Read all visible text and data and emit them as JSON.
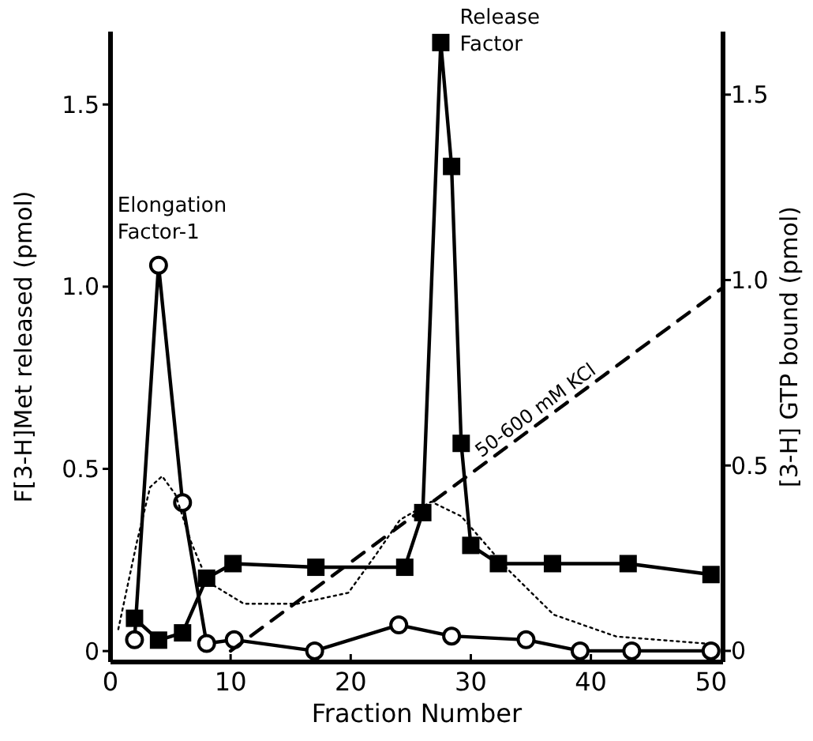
{
  "chart_data": {
    "type": "line",
    "xlabel": "Fraction Number",
    "ylabel": "F[3-H]Met released (pmol)",
    "y2label": "[3-H] GTP bound (pmol)",
    "xlim": [
      0,
      51
    ],
    "xticks": [
      0,
      10,
      20,
      30,
      40,
      50
    ],
    "ylim": [
      -0.03,
      1.7
    ],
    "yticks": [
      0,
      {
        "value": 0.5,
        "label": "0.5"
      },
      {
        "value": 1,
        "label": "1.0"
      },
      1.5
    ],
    "y2lim": [
      -0.03,
      1.67
    ],
    "y2ticks": [
      0,
      {
        "value": 0.5,
        "label": "0.5"
      },
      {
        "value": 1,
        "label": "1.0"
      },
      1.5
    ],
    "series": [
      {
        "color": "#000000",
        "marker": "square",
        "line_style": "solid",
        "x": [
          2,
          4,
          6,
          8,
          10.2,
          17.1,
          24.5,
          26,
          27.5,
          28.4,
          29.2,
          30,
          32.3,
          36.8,
          43.1,
          50
        ],
        "values": [
          0.09,
          0.03,
          0.05,
          0.2,
          0.24,
          0.23,
          0.23,
          0.38,
          1.67,
          1.33,
          0.57,
          0.29,
          0.24,
          0.24,
          0.24,
          0.21
        ]
      },
      {
        "color": "#000000",
        "marker": "circle",
        "line_style": "solid",
        "axis": "y2",
        "x": [
          2,
          4,
          6,
          8,
          10.3,
          17,
          24,
          28.4,
          34.6,
          39.1,
          43.4,
          50
        ],
        "values": [
          0.03,
          1.04,
          0.4,
          0.02,
          0.03,
          0,
          0.07,
          0.04,
          0.03,
          0,
          0,
          0
        ]
      },
      {
        "color": "#000000",
        "marker": "none",
        "line_style": "dotted",
        "x": [
          0.65,
          2.2,
          3.3,
          4.3,
          5.4,
          6.7,
          8.1,
          11.1,
          15.6,
          19.8,
          22,
          24.1,
          26.7,
          29.2,
          32.9,
          36.9,
          42.1,
          49.8
        ],
        "values": [
          0.06,
          0.3,
          0.45,
          0.48,
          0.43,
          0.3,
          0.19,
          0.13,
          0.13,
          0.16,
          0.26,
          0.36,
          0.41,
          0.37,
          0.23,
          0.1,
          0.04,
          0.02
        ]
      },
      {
        "color": "#000000",
        "marker": "none",
        "line_style": "dashed",
        "axis": "y2",
        "x": [
          10,
          51
        ],
        "values": [
          0,
          0.98
        ]
      }
    ],
    "annotations": [
      {
        "text": "Elongation Factor-1",
        "x": 4,
        "y": 1.04
      },
      {
        "text": "Release Factor",
        "x": 27.5,
        "y": 1.67
      },
      {
        "text": "50-600 mM KCl",
        "x": 36,
        "y": 0.62
      }
    ]
  }
}
